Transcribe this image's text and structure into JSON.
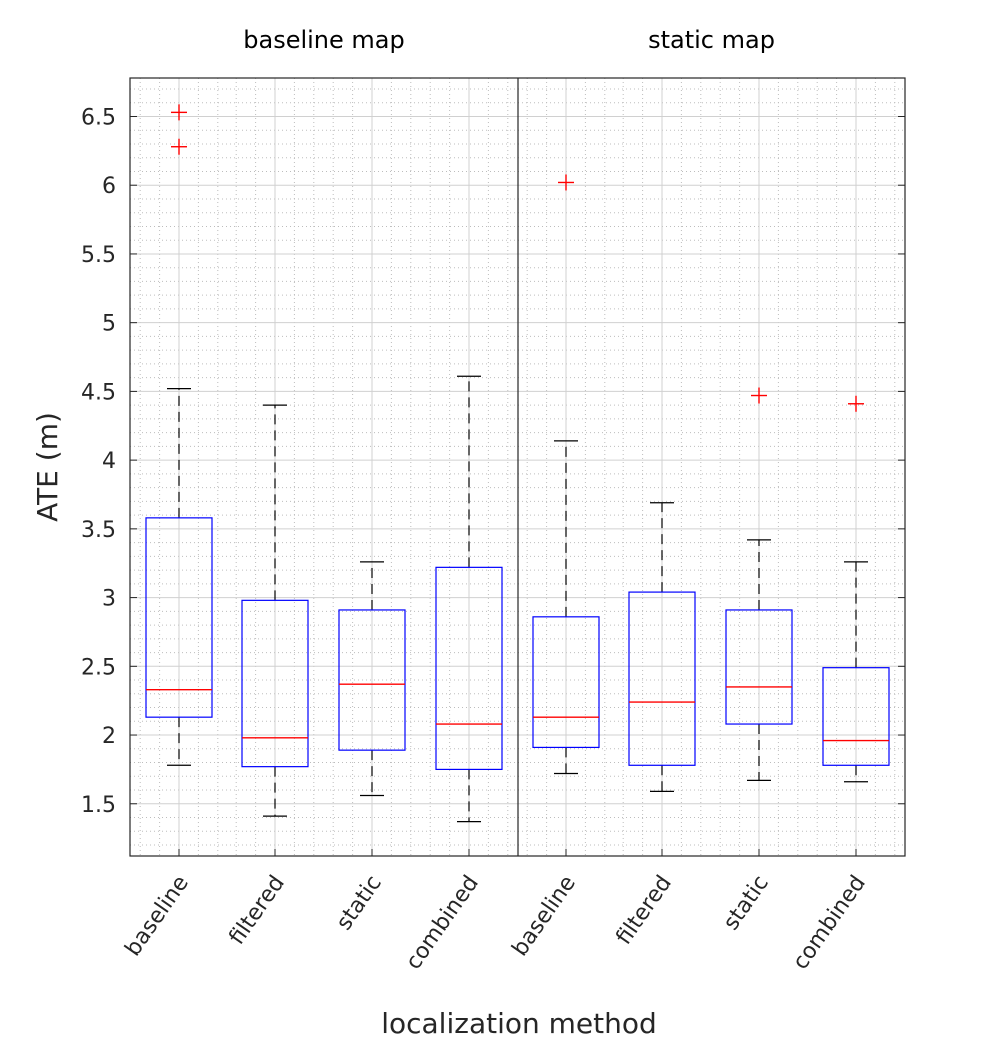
{
  "chart_data": {
    "type": "boxplot",
    "xlabel": "localization method",
    "ylabel": "ATE (m)",
    "ylim": [
      1.12,
      6.78
    ],
    "yticks": [
      "1.5",
      "2",
      "2.5",
      "3",
      "3.5",
      "4",
      "4.5",
      "5",
      "5.5",
      "6",
      "6.5"
    ],
    "grid": true,
    "minor_grid": true,
    "colors": {
      "box": "#0000ff",
      "median": "#ff0000",
      "whisker": "#000000",
      "outlier": "#ff0000",
      "grid": "#d0d0d0",
      "axes": "#262626"
    },
    "groups": [
      {
        "title": "baseline map",
        "boxes": [
          {
            "label": "baseline",
            "whisker_low": 1.78,
            "q1": 2.13,
            "median": 2.33,
            "q3": 3.58,
            "whisker_high": 4.52,
            "outliers": [
              6.28,
              6.53
            ]
          },
          {
            "label": "filtered",
            "whisker_low": 1.41,
            "q1": 1.77,
            "median": 1.98,
            "q3": 2.98,
            "whisker_high": 4.4,
            "outliers": []
          },
          {
            "label": "static",
            "whisker_low": 1.56,
            "q1": 1.89,
            "median": 2.37,
            "q3": 2.91,
            "whisker_high": 3.26,
            "outliers": []
          },
          {
            "label": "combined",
            "whisker_low": 1.37,
            "q1": 1.75,
            "median": 2.08,
            "q3": 3.22,
            "whisker_high": 4.61,
            "outliers": []
          }
        ]
      },
      {
        "title": "static map",
        "boxes": [
          {
            "label": "baseline",
            "whisker_low": 1.72,
            "q1": 1.91,
            "median": 2.13,
            "q3": 2.86,
            "whisker_high": 4.14,
            "outliers": [
              6.02
            ]
          },
          {
            "label": "filtered",
            "whisker_low": 1.59,
            "q1": 1.78,
            "median": 2.24,
            "q3": 3.04,
            "whisker_high": 3.69,
            "outliers": []
          },
          {
            "label": "static",
            "whisker_low": 1.67,
            "q1": 2.08,
            "median": 2.35,
            "q3": 2.91,
            "whisker_high": 3.42,
            "outliers": [
              4.47
            ]
          },
          {
            "label": "combined",
            "whisker_low": 1.66,
            "q1": 1.78,
            "median": 1.96,
            "q3": 2.49,
            "whisker_high": 3.26,
            "outliers": [
              4.41
            ]
          }
        ]
      }
    ]
  }
}
